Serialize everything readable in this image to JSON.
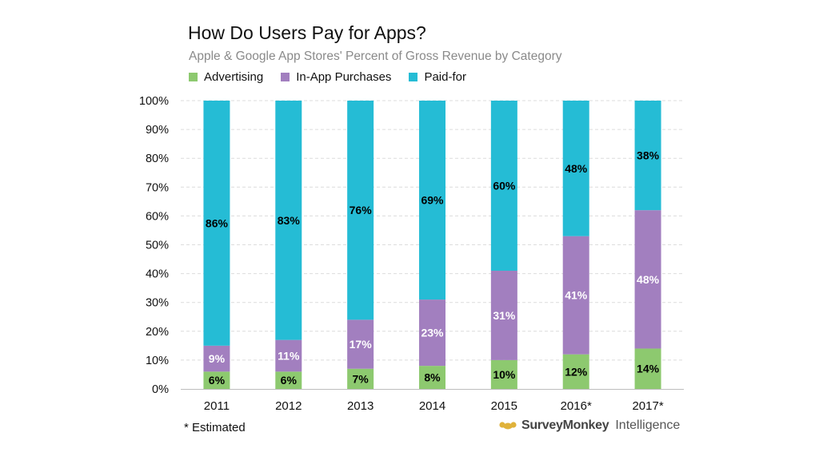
{
  "chart_data": {
    "type": "bar",
    "stacked": true,
    "title": "How Do Users Pay for Apps?",
    "subtitle": "Apple & Google App Stores' Percent of Gross Revenue by Category",
    "categories": [
      "2011",
      "2012",
      "2013",
      "2014",
      "2015",
      "2016*",
      "2017*"
    ],
    "series": [
      {
        "name": "Advertising",
        "color": "#8dc96f",
        "label_color": "#000000",
        "values": [
          6,
          6,
          7,
          8,
          10,
          12,
          14
        ]
      },
      {
        "name": "In-App Purchases",
        "color": "#a27fbf",
        "label_color": "#ffffff",
        "values": [
          9,
          11,
          17,
          23,
          31,
          41,
          48
        ]
      },
      {
        "name": "Paid-for",
        "color": "#25bcd5",
        "label_color": "#000000",
        "values": [
          86,
          83,
          76,
          69,
          60,
          48,
          38
        ]
      }
    ],
    "ylim": [
      0,
      100
    ],
    "yticks": [
      "0%",
      "10%",
      "20%",
      "30%",
      "40%",
      "50%",
      "60%",
      "70%",
      "80%",
      "90%",
      "100%"
    ],
    "grid": true,
    "legend": "top-left",
    "xlabel": "",
    "ylabel": ""
  },
  "footnote": "* Estimated",
  "brand": {
    "name": "SurveyMonkey",
    "sub": "Intelligence"
  }
}
